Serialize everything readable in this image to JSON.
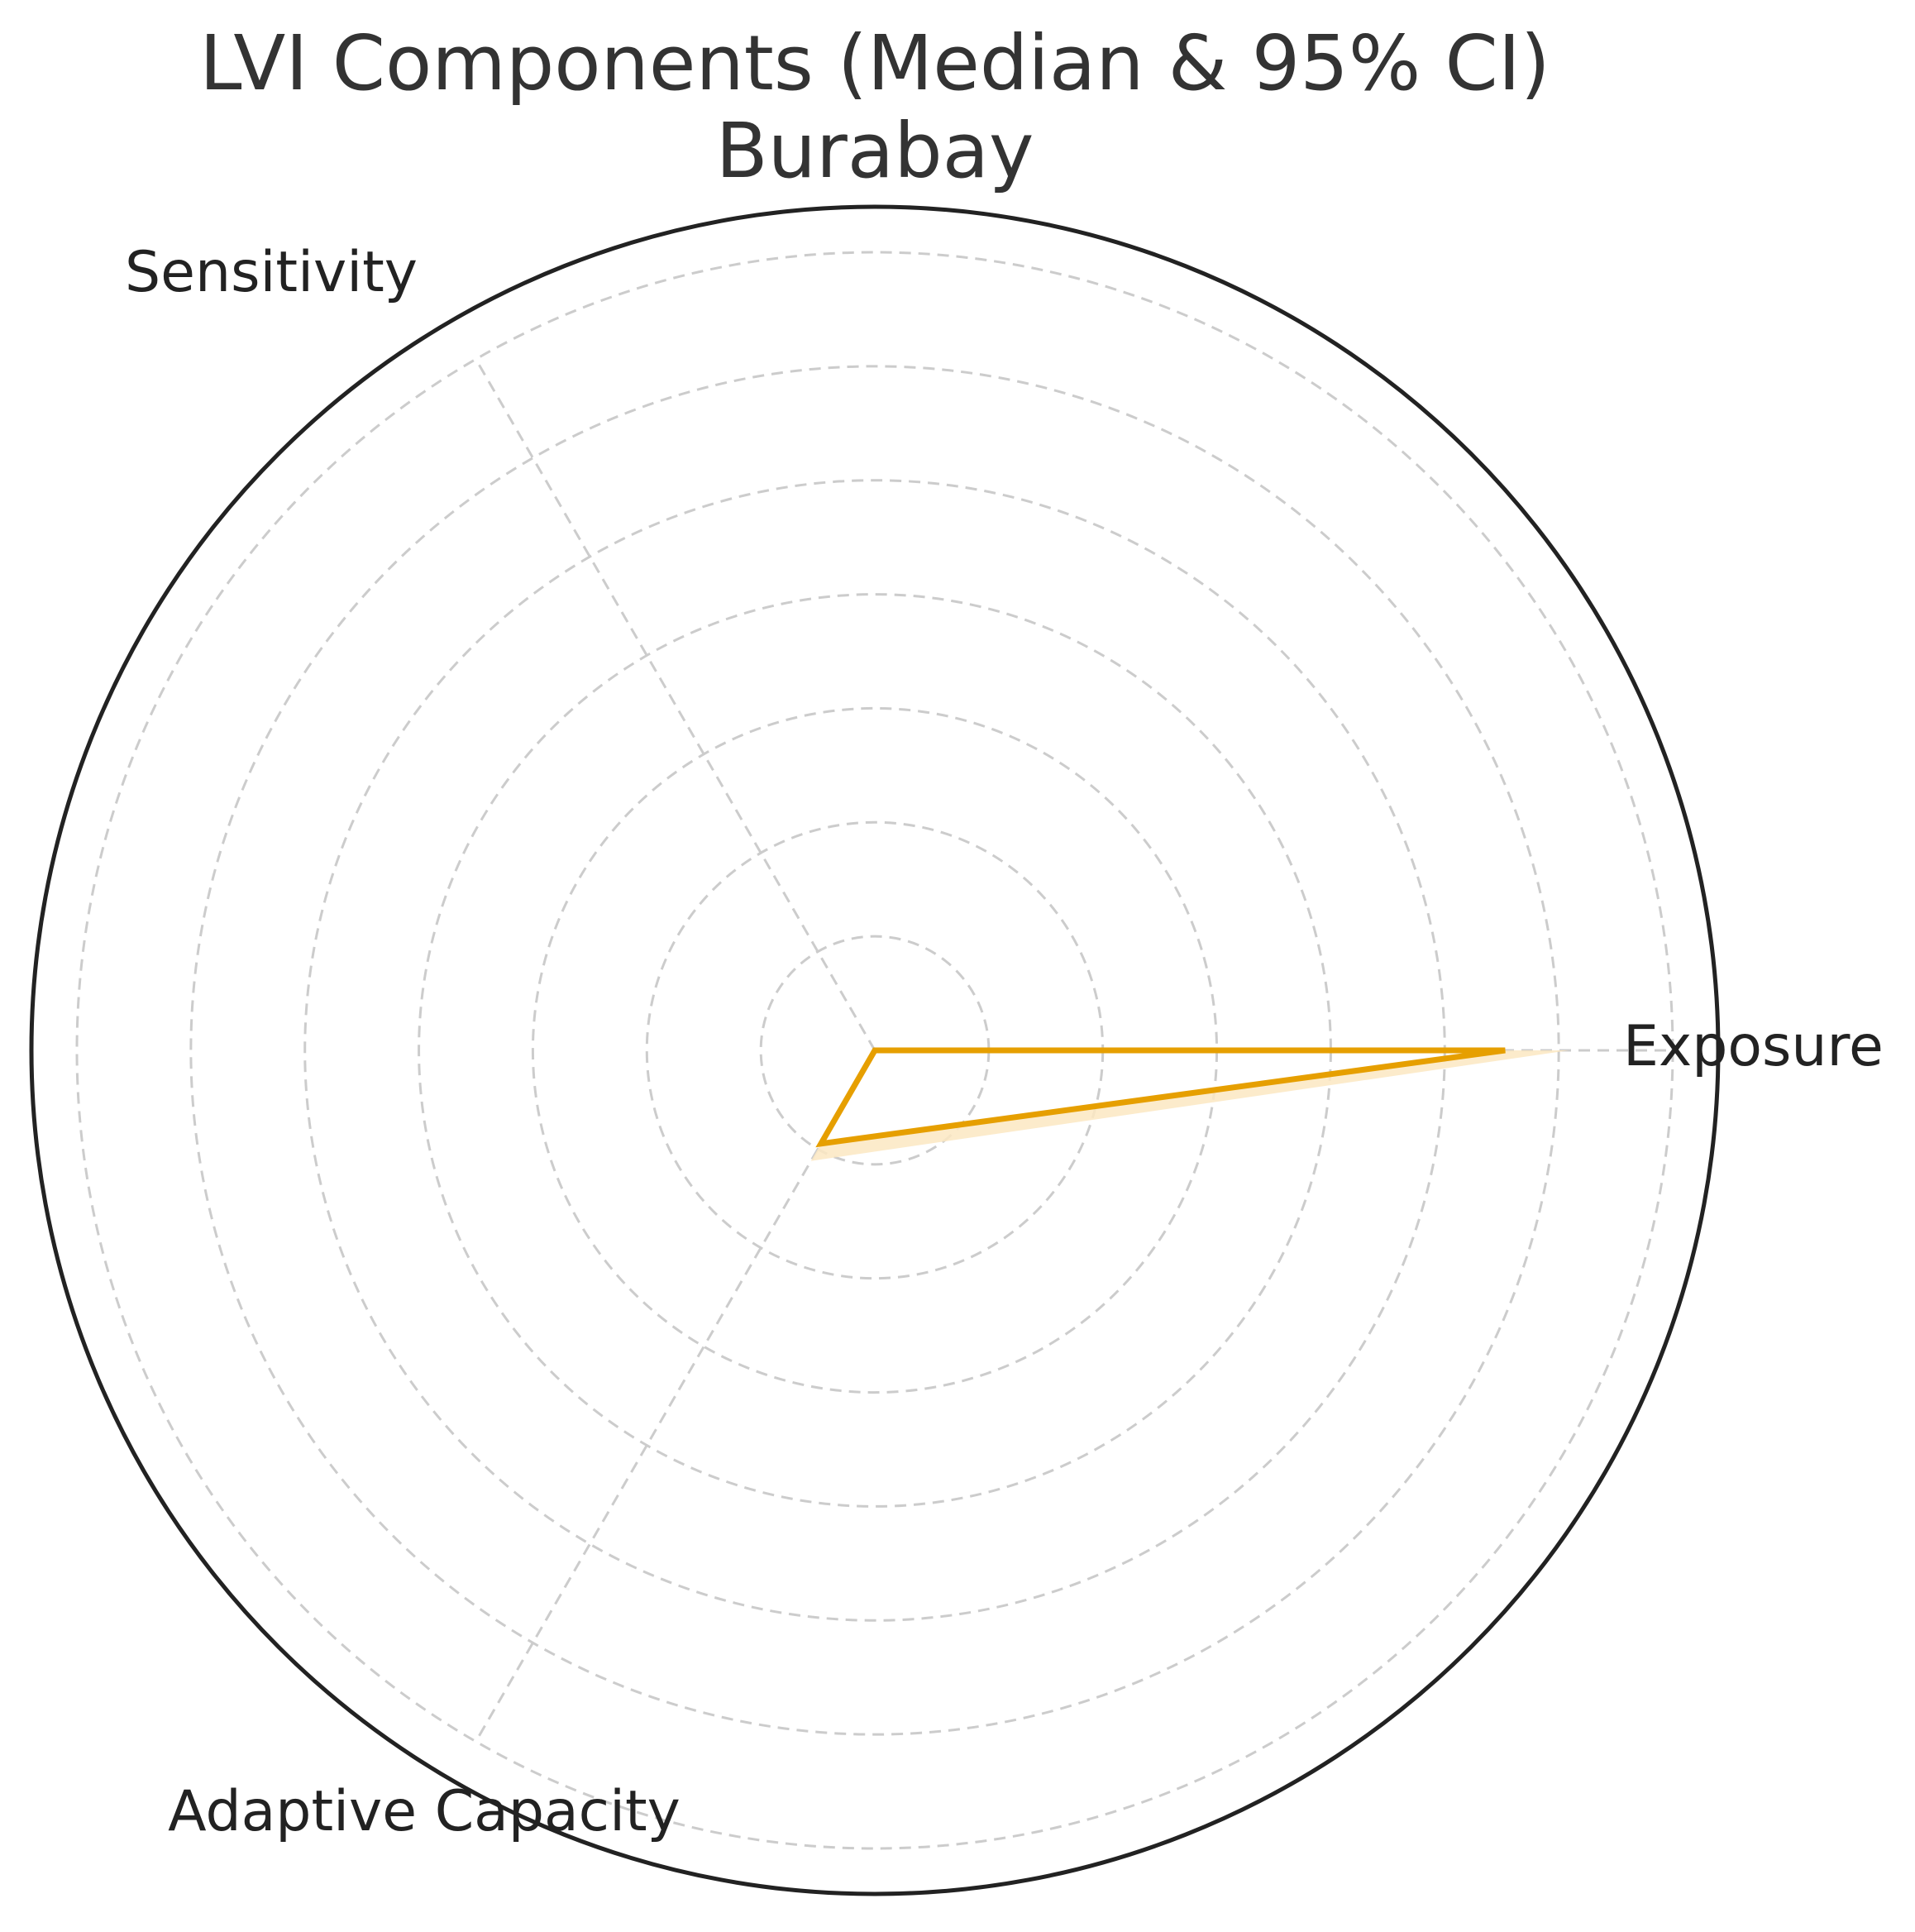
{
  "chart_data": {
    "type": "radar",
    "title": "LVI Components (Median & 95% CI)",
    "subtitle": "Burabay",
    "axes": [
      "Exposure",
      "Sensitivity",
      "Adaptive Capacity"
    ],
    "series": [
      {
        "median": [
          0.79,
          0.0,
          0.135
        ],
        "ci_lower": [
          0.79,
          0.0,
          0.135
        ],
        "ci_upper": [
          0.87,
          0.0,
          0.16
        ]
      }
    ],
    "rmax": 1.0,
    "grid_rings": 7,
    "grid": true,
    "legend": "none",
    "colors": {
      "line": "#E69F00",
      "fill": "#FBE7C2",
      "grid": "#cccccc",
      "outer": "#222222"
    }
  }
}
